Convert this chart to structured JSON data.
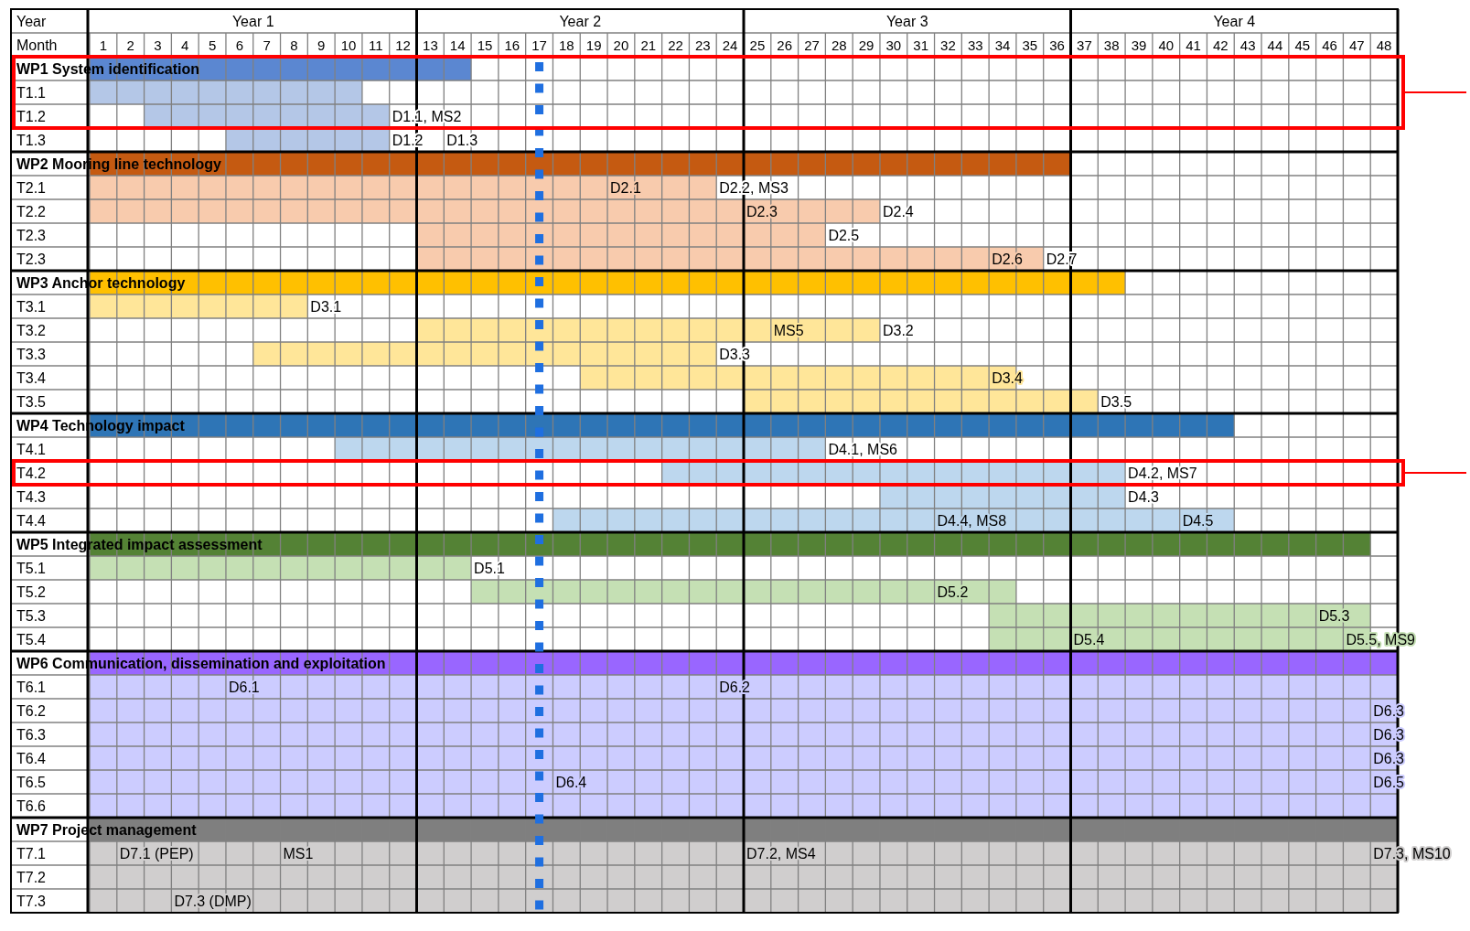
{
  "chart_data": {
    "type": "bar",
    "orientation": "horizontal",
    "xlabel": "Month",
    "x2label": "Year",
    "categories": [
      "WP1 System identification",
      "T1.1",
      "T1.2",
      "T1.3",
      "WP2 Mooring line technology",
      "T2.1",
      "T2.2",
      "T2.3",
      "T2.3",
      "WP3 Anchor technology",
      "T3.1",
      "T3.2",
      "T3.3",
      "T3.4",
      "T3.5",
      "WP4 Technology impact",
      "T4.1",
      "T4.2",
      "T4.3",
      "T4.4",
      "WP5 Integrated impact assessment",
      "T5.1",
      "T5.2",
      "T5.3",
      "T5.4",
      "WP6 Communication, dissemination and exploitation",
      "T6.1",
      "T6.2",
      "T6.3",
      "T6.4",
      "T6.5",
      "T6.6",
      "WP7 Project management",
      "T7.1",
      "T7.2",
      "T7.3"
    ],
    "series": [
      {
        "base": [
          0,
          null,
          null,
          null,
          0,
          null,
          null,
          null,
          null,
          0,
          null,
          null,
          null,
          null,
          null,
          0,
          null,
          null,
          null,
          null,
          0,
          null,
          null,
          null,
          null,
          0,
          null,
          null,
          null,
          null,
          null,
          null,
          0,
          null,
          null,
          null
        ],
        "values": [
          14,
          null,
          null,
          null,
          36,
          null,
          null,
          null,
          null,
          38,
          null,
          null,
          null,
          null,
          null,
          42,
          null,
          null,
          null,
          null,
          47,
          null,
          null,
          null,
          null,
          48,
          null,
          null,
          null,
          null,
          null,
          null,
          48,
          null,
          null,
          null
        ],
        "colors": [
          "#5b87d1",
          null,
          null,
          null,
          "#c55a11",
          null,
          null,
          null,
          null,
          "#ffc000",
          null,
          null,
          null,
          null,
          null,
          "#2e75b6",
          null,
          null,
          null,
          null,
          "#548235",
          null,
          null,
          null,
          null,
          "#9966ff",
          null,
          null,
          null,
          null,
          null,
          null,
          "#7f7f7f",
          null,
          null,
          null
        ]
      },
      {
        "base": [
          null,
          0,
          2,
          5,
          null,
          0,
          0,
          12,
          12,
          null,
          0,
          12,
          6,
          18,
          24,
          null,
          9,
          21,
          29,
          17,
          null,
          0,
          14,
          33,
          33,
          null,
          0,
          0,
          0,
          0,
          0,
          0,
          null,
          0,
          0,
          0
        ],
        "values": [
          null,
          10,
          9,
          6,
          null,
          23,
          29,
          15,
          23,
          null,
          8,
          17,
          17,
          16,
          13,
          null,
          18,
          17,
          9,
          25,
          null,
          14,
          20,
          14,
          14,
          null,
          48,
          48,
          48,
          48,
          48,
          48,
          null,
          48,
          48,
          48
        ],
        "colors": [
          null,
          "#b4c7e7",
          "#b4c7e7",
          "#b4c7e7",
          null,
          "#f8cbad",
          "#f8cbad",
          "#f8cbad",
          "#f8cbad",
          null,
          "#ffe699",
          "#ffe699",
          "#ffe699",
          "#ffe699",
          "#ffe699",
          null,
          "#bdd7ee",
          "#bdd7ee",
          "#bdd7ee",
          "#bdd7ee",
          null,
          "#c5e0b4",
          "#c5e0b4",
          "#c5e0b4",
          "#c5e0b4",
          null,
          "#ccccff",
          "#ccccff",
          "#ccccff",
          "#ccccff",
          "#ccccff",
          "#ccccff",
          null,
          "#d0cece",
          "#d0cece",
          "#d0cece"
        ]
      }
    ],
    "xlim": [
      0,
      48
    ],
    "xticks": [
      {
        "value": 0.5,
        "label": "1"
      },
      {
        "value": 1.5,
        "label": "2"
      },
      {
        "value": 2.5,
        "label": "3"
      },
      {
        "value": 3.5,
        "label": "4"
      },
      {
        "value": 4.5,
        "label": "5"
      },
      {
        "value": 5.5,
        "label": "6"
      },
      {
        "value": 6.5,
        "label": "7"
      },
      {
        "value": 7.5,
        "label": "8"
      },
      {
        "value": 8.5,
        "label": "9"
      },
      {
        "value": 9.5,
        "label": "10"
      },
      {
        "value": 10.5,
        "label": "11"
      },
      {
        "value": 11.5,
        "label": "12"
      },
      {
        "value": 12.5,
        "label": "13"
      },
      {
        "value": 13.5,
        "label": "14"
      },
      {
        "value": 14.5,
        "label": "15"
      },
      {
        "value": 15.5,
        "label": "16"
      },
      {
        "value": 16.5,
        "label": "17"
      },
      {
        "value": 17.5,
        "label": "18"
      },
      {
        "value": 18.5,
        "label": "19"
      },
      {
        "value": 19.5,
        "label": "20"
      },
      {
        "value": 20.5,
        "label": "21"
      },
      {
        "value": 21.5,
        "label": "22"
      },
      {
        "value": 22.5,
        "label": "23"
      },
      {
        "value": 23.5,
        "label": "24"
      },
      {
        "value": 24.5,
        "label": "25"
      },
      {
        "value": 25.5,
        "label": "26"
      },
      {
        "value": 26.5,
        "label": "27"
      },
      {
        "value": 27.5,
        "label": "28"
      },
      {
        "value": 28.5,
        "label": "29"
      },
      {
        "value": 29.5,
        "label": "30"
      },
      {
        "value": 30.5,
        "label": "31"
      },
      {
        "value": 31.5,
        "label": "32"
      },
      {
        "value": 32.5,
        "label": "33"
      },
      {
        "value": 33.5,
        "label": "34"
      },
      {
        "value": 34.5,
        "label": "35"
      },
      {
        "value": 35.5,
        "label": "36"
      },
      {
        "value": 36.5,
        "label": "37"
      },
      {
        "value": 37.5,
        "label": "38"
      },
      {
        "value": 38.5,
        "label": "39"
      },
      {
        "value": 39.5,
        "label": "40"
      },
      {
        "value": 40.5,
        "label": "41"
      },
      {
        "value": 41.5,
        "label": "42"
      },
      {
        "value": 42.5,
        "label": "43"
      },
      {
        "value": 43.5,
        "label": "44"
      },
      {
        "value": 44.5,
        "label": "45"
      },
      {
        "value": 45.5,
        "label": "46"
      },
      {
        "value": 46.5,
        "label": "47"
      },
      {
        "value": 47.5,
        "label": "48"
      }
    ],
    "grid": true,
    "ref_lines": [
      {
        "axis": "x",
        "value": 16.5,
        "color": "#1f6fe0",
        "line_style": "dashed"
      }
    ],
    "annotations": [
      "Year 1",
      "Year 2",
      "Year 3",
      "Year 4",
      {
        "text": "D1.1, MS2",
        "x": 11,
        "y": "T1.2"
      },
      {
        "text": "D1.2",
        "x": 11,
        "y": "T1.3"
      },
      {
        "text": "D1.3",
        "x": 13,
        "y": "T1.3"
      },
      {
        "text": "D2.1",
        "x": 19,
        "y": "T2.1"
      },
      {
        "text": "D2.2, MS3",
        "x": 23,
        "y": "T2.1"
      },
      {
        "text": "D2.3",
        "x": 24,
        "y": "T2.2"
      },
      {
        "text": "D2.4",
        "x": 29,
        "y": "T2.2"
      },
      {
        "text": "D2.5",
        "x": 27,
        "y": "T2.3"
      },
      {
        "text": "D2.6",
        "x": 33,
        "y": "T2.3"
      },
      {
        "text": "D2.7",
        "x": 35,
        "y": "T2.3"
      },
      {
        "text": "D3.1",
        "x": 8,
        "y": "T3.1"
      },
      {
        "text": "MS5",
        "x": 25,
        "y": "T3.2"
      },
      {
        "text": "D3.2",
        "x": 29,
        "y": "T3.2"
      },
      {
        "text": "D3.3",
        "x": 23,
        "y": "T3.3"
      },
      {
        "text": "D3.4",
        "x": 33,
        "y": "T3.4"
      },
      {
        "text": "D3.5",
        "x": 37,
        "y": "T3.5"
      },
      {
        "text": "D4.1, MS6",
        "x": 27,
        "y": "T4.1"
      },
      {
        "text": "D4.2, MS7",
        "x": 38,
        "y": "T4.2"
      },
      {
        "text": "D4.3",
        "x": 38,
        "y": "T4.3"
      },
      {
        "text": "D4.4, MS8",
        "x": 31,
        "y": "T4.4"
      },
      {
        "text": "D4.5",
        "x": 40,
        "y": "T4.4"
      },
      {
        "text": "D5.1",
        "x": 14,
        "y": "T5.1"
      },
      {
        "text": "D5.2",
        "x": 31,
        "y": "T5.2"
      },
      {
        "text": "D5.3",
        "x": 45,
        "y": "T5.3"
      },
      {
        "text": "D5.4",
        "x": 36,
        "y": "T5.4"
      },
      {
        "text": "D5.5, MS9",
        "x": 46,
        "y": "T5.4"
      },
      {
        "text": "D6.1",
        "x": 5,
        "y": "T6.1"
      },
      {
        "text": "D6.2",
        "x": 23,
        "y": "T6.1"
      },
      {
        "text": "D6.3",
        "x": 47,
        "y": "T6.2"
      },
      {
        "text": "D6.3",
        "x": 47,
        "y": "T6.3"
      },
      {
        "text": "D6.3",
        "x": 47,
        "y": "T6.4"
      },
      {
        "text": "D6.4",
        "x": 17,
        "y": "T6.5"
      },
      {
        "text": "D6.5",
        "x": 47,
        "y": "T6.5"
      },
      {
        "text": "D7.1 (PEP)",
        "x": 1,
        "y": "T7.1"
      },
      {
        "text": "MS1",
        "x": 7,
        "y": "T7.1"
      },
      {
        "text": "D7.2, MS4",
        "x": 24,
        "y": "T7.1"
      },
      {
        "text": "D7.3, MS10",
        "x": 47,
        "y": "T7.1"
      },
      {
        "text": "D7.3 (DMP)",
        "x": 3,
        "y": "T7.3"
      }
    ]
  }
}
